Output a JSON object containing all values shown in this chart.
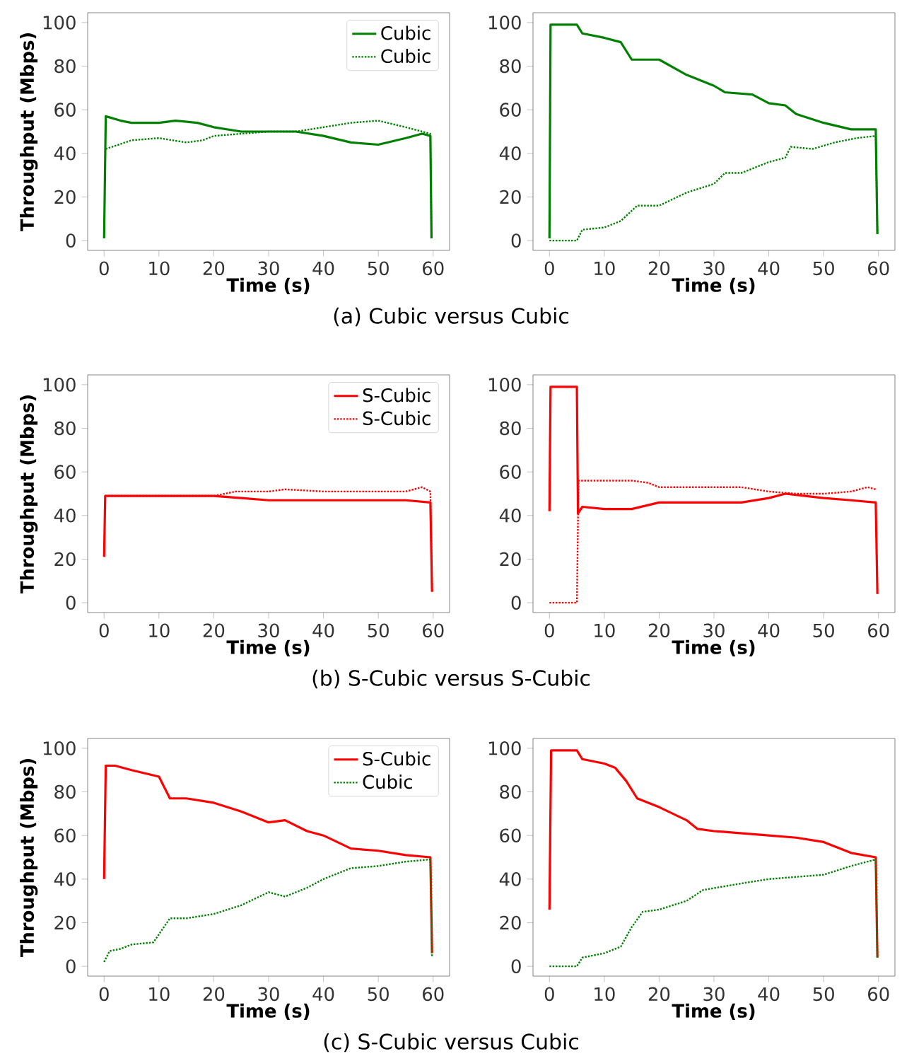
{
  "chart_data": [
    {
      "type": "line",
      "xlabel": "Time (s)",
      "ylabel": "Throughput (Mbps)",
      "xlim": [
        -3,
        63
      ],
      "ylim": [
        -4.5,
        104.5
      ],
      "xticks": [
        0,
        10,
        20,
        30,
        40,
        50,
        60
      ],
      "yticks": [
        0,
        20,
        40,
        60,
        80,
        100
      ],
      "legend": "top right",
      "annotations": [
        "(a) Cubic versus Cubic"
      ],
      "series": [
        {
          "name": "Cubic",
          "color": "#008000",
          "line_style": "solid",
          "x": [
            0,
            0.3,
            3,
            5,
            10,
            13,
            17,
            20,
            25,
            30,
            35,
            40,
            45,
            50,
            55,
            58,
            59.5,
            59.7
          ],
          "values": [
            1,
            57,
            55,
            54,
            54,
            55,
            54,
            52,
            50,
            50,
            50,
            48,
            45,
            44,
            47,
            49,
            48,
            1
          ]
        },
        {
          "name": "Cubic",
          "color": "#008000",
          "line_style": "dotted",
          "x": [
            0.3,
            5,
            10,
            15,
            18,
            20,
            25,
            30,
            35,
            40,
            45,
            50,
            55,
            59.5,
            59.7
          ],
          "values": [
            42,
            46,
            47,
            45,
            46,
            48,
            49,
            50,
            50,
            52,
            54,
            55,
            52,
            49,
            1
          ]
        }
      ]
    },
    {
      "type": "line",
      "xlabel": "Time (s)",
      "xlim": [
        -3,
        63
      ],
      "ylim": [
        -4.5,
        104.5
      ],
      "xticks": [
        0,
        10,
        20,
        30,
        40,
        50,
        60
      ],
      "yticks": [
        0,
        20,
        40,
        60,
        80,
        100
      ],
      "series": [
        {
          "color": "#008000",
          "line_style": "solid",
          "x": [
            0,
            0.2,
            5,
            6,
            10,
            13,
            15,
            20,
            25,
            30,
            32,
            37,
            40,
            43,
            45,
            50,
            55,
            59.5,
            59.8
          ],
          "values": [
            1,
            99,
            99,
            95,
            93,
            91,
            83,
            83,
            76,
            71,
            68,
            67,
            63,
            62,
            58,
            54,
            51,
            51,
            3
          ]
        },
        {
          "color": "#008000",
          "line_style": "dotted",
          "x": [
            0,
            5,
            6,
            10,
            13,
            16,
            20,
            25,
            30,
            32,
            35,
            40,
            43,
            44,
            48,
            52,
            56,
            59.5,
            59.8
          ],
          "values": [
            0,
            0,
            5,
            6,
            9,
            16,
            16,
            22,
            26,
            31,
            31,
            36,
            38,
            43,
            42,
            45,
            47,
            48,
            3
          ]
        }
      ]
    },
    {
      "type": "line",
      "xlabel": "Time (s)",
      "ylabel": "Throughput (Mbps)",
      "xlim": [
        -3,
        63
      ],
      "ylim": [
        -4.5,
        104.5
      ],
      "xticks": [
        0,
        10,
        20,
        30,
        40,
        50,
        60
      ],
      "yticks": [
        0,
        20,
        40,
        60,
        80,
        100
      ],
      "legend": "top right",
      "annotations": [
        "(b) S-Cubic versus S-Cubic"
      ],
      "series": [
        {
          "name": "S-Cubic",
          "color": "#ff0000",
          "line_style": "solid",
          "x": [
            0,
            0.2,
            10,
            20,
            25,
            30,
            40,
            45,
            50,
            55,
            59.5,
            59.8
          ],
          "values": [
            21,
            49,
            49,
            49,
            48,
            47,
            47,
            47,
            47,
            47,
            46,
            5
          ]
        },
        {
          "name": "S-Cubic",
          "color": "#ff0000",
          "line_style": "dotted",
          "x": [
            0.2,
            10,
            20,
            24,
            30,
            33,
            40,
            45,
            50,
            55,
            58,
            59.5,
            59.8
          ],
          "values": [
            49,
            49,
            49,
            51,
            51,
            52,
            51,
            51,
            51,
            51,
            53,
            51,
            5
          ]
        }
      ]
    },
    {
      "type": "line",
      "xlabel": "Time (s)",
      "xlim": [
        -3,
        63
      ],
      "ylim": [
        -4.5,
        104.5
      ],
      "xticks": [
        0,
        10,
        20,
        30,
        40,
        50,
        60
      ],
      "yticks": [
        0,
        20,
        40,
        60,
        80,
        100
      ],
      "series": [
        {
          "color": "#ff0000",
          "line_style": "solid",
          "x": [
            0,
            0.2,
            5,
            5.2,
            6,
            10,
            15,
            20,
            30,
            35,
            40,
            43,
            50,
            55,
            59.5,
            59.8
          ],
          "values": [
            42,
            99,
            99,
            41,
            44,
            43,
            43,
            46,
            46,
            46,
            48,
            50,
            48,
            47,
            46,
            4
          ]
        },
        {
          "color": "#ff0000",
          "line_style": "dotted",
          "x": [
            0,
            5,
            5.3,
            10,
            15,
            18,
            20,
            30,
            35,
            40,
            45,
            50,
            55,
            58,
            59.5
          ],
          "values": [
            0,
            0,
            56,
            56,
            56,
            55,
            53,
            53,
            53,
            51,
            50,
            50,
            51,
            53,
            52
          ]
        }
      ]
    },
    {
      "type": "line",
      "xlabel": "Time (s)",
      "ylabel": "Throughput (Mbps)",
      "xlim": [
        -3,
        63
      ],
      "ylim": [
        -4.5,
        104.5
      ],
      "xticks": [
        0,
        10,
        20,
        30,
        40,
        50,
        60
      ],
      "yticks": [
        0,
        20,
        40,
        60,
        80,
        100
      ],
      "legend": "top right",
      "annotations": [
        "(c) S-Cubic versus Cubic"
      ],
      "series": [
        {
          "name": "S-Cubic",
          "color": "#ff0000",
          "line_style": "solid",
          "x": [
            0,
            0.3,
            2,
            5,
            10,
            12,
            15,
            20,
            25,
            30,
            33,
            37,
            40,
            45,
            50,
            55,
            59.5,
            59.8
          ],
          "values": [
            40,
            92,
            92,
            90,
            87,
            77,
            77,
            75,
            71,
            66,
            67,
            62,
            60,
            54,
            53,
            51,
            50,
            6
          ]
        },
        {
          "name": "Cubic",
          "color": "#008000",
          "line_style": "dotted",
          "x": [
            0,
            1,
            3,
            5,
            9,
            12,
            15,
            20,
            25,
            30,
            33,
            37,
            40,
            45,
            50,
            55,
            59.5,
            59.8
          ],
          "values": [
            2,
            7,
            8,
            10,
            11,
            22,
            22,
            24,
            28,
            34,
            32,
            36,
            40,
            45,
            46,
            48,
            49,
            4
          ]
        }
      ]
    },
    {
      "type": "line",
      "xlabel": "Time (s)",
      "xlim": [
        -3,
        63
      ],
      "ylim": [
        -4.5,
        104.5
      ],
      "xticks": [
        0,
        10,
        20,
        30,
        40,
        50,
        60
      ],
      "yticks": [
        0,
        20,
        40,
        60,
        80,
        100
      ],
      "series": [
        {
          "color": "#ff0000",
          "line_style": "solid",
          "x": [
            0,
            0.3,
            5,
            6,
            10,
            12,
            14,
            16,
            20,
            25,
            27,
            30,
            40,
            45,
            50,
            55,
            59.5,
            59.8
          ],
          "values": [
            26,
            99,
            99,
            95,
            93,
            91,
            85,
            77,
            73,
            67,
            63,
            62,
            60,
            59,
            57,
            52,
            50,
            4
          ]
        },
        {
          "color": "#008000",
          "line_style": "dotted",
          "x": [
            0,
            5,
            6,
            10,
            13,
            15,
            17,
            20,
            25,
            28,
            35,
            40,
            45,
            50,
            55,
            59.5,
            59.8
          ],
          "values": [
            0,
            0,
            4,
            6,
            9,
            18,
            25,
            26,
            30,
            35,
            38,
            40,
            41,
            42,
            46,
            49,
            4
          ]
        }
      ]
    }
  ]
}
